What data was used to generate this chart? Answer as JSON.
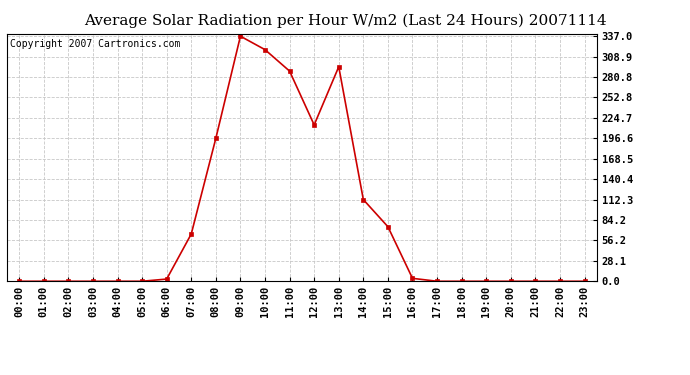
{
  "title": "Average Solar Radiation per Hour W/m2 (Last 24 Hours) 20071114",
  "copyright": "Copyright 2007 Cartronics.com",
  "hours": [
    "00:00",
    "01:00",
    "02:00",
    "03:00",
    "04:00",
    "05:00",
    "06:00",
    "07:00",
    "08:00",
    "09:00",
    "10:00",
    "11:00",
    "12:00",
    "13:00",
    "14:00",
    "15:00",
    "16:00",
    "17:00",
    "18:00",
    "19:00",
    "20:00",
    "21:00",
    "22:00",
    "23:00"
  ],
  "values": [
    0.0,
    0.0,
    0.0,
    0.0,
    0.0,
    0.0,
    3.0,
    65.0,
    196.6,
    337.0,
    318.5,
    289.0,
    215.0,
    295.0,
    112.3,
    75.0,
    4.0,
    0.0,
    0.0,
    0.0,
    0.0,
    0.0,
    0.0,
    0.0
  ],
  "yticks": [
    0.0,
    28.1,
    56.2,
    84.2,
    112.3,
    140.4,
    168.5,
    196.6,
    224.7,
    252.8,
    280.8,
    308.9,
    337.0
  ],
  "ymax": 337.0,
  "ymin": 0.0,
  "line_color": "#cc0000",
  "marker_color": "#cc0000",
  "bg_color": "#ffffff",
  "grid_color": "#c8c8c8",
  "title_fontsize": 11,
  "copyright_fontsize": 7,
  "tick_fontsize": 7.5
}
